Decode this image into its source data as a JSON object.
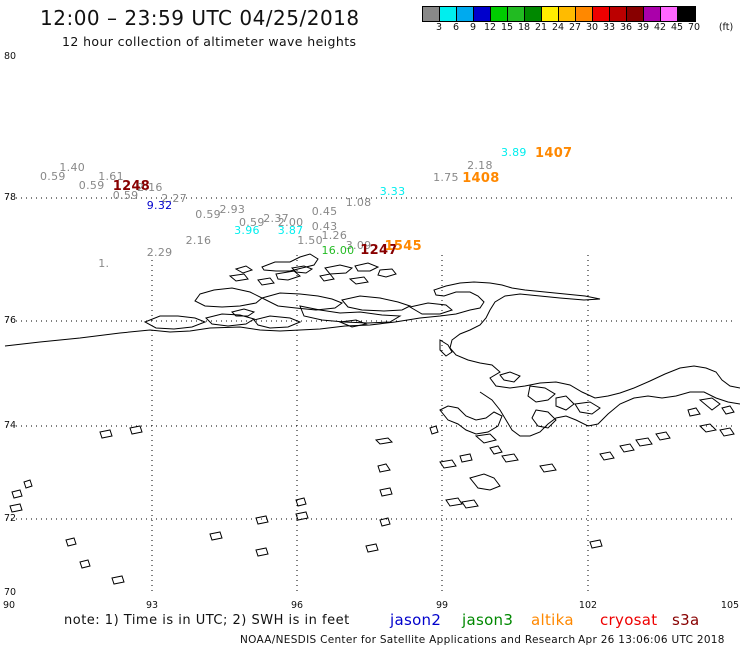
{
  "header": {
    "title": "12:00 – 23:59 UTC 04/25/2018",
    "subtitle": "12 hour collection of altimeter wave heights"
  },
  "legend": {
    "unit": "(ft)",
    "bins": [
      {
        "label": "3",
        "color": "#888888"
      },
      {
        "label": "6",
        "color": "#00eeee"
      },
      {
        "label": "9",
        "color": "#00aaee"
      },
      {
        "label": "12",
        "color": "#0000cc"
      },
      {
        "label": "15",
        "color": "#00cc00"
      },
      {
        "label": "18",
        "color": "#22bb22"
      },
      {
        "label": "21",
        "color": "#008800"
      },
      {
        "label": "24",
        "color": "#ffee00"
      },
      {
        "label": "27",
        "color": "#ffbb00"
      },
      {
        "label": "30",
        "color": "#ff8800"
      },
      {
        "label": "33",
        "color": "#ee0000"
      },
      {
        "label": "36",
        "color": "#bb0000"
      },
      {
        "label": "39",
        "color": "#880000"
      },
      {
        "label": "42",
        "color": "#aa00aa"
      },
      {
        "label": "45",
        "color": "#ff66ff"
      },
      {
        "label": "70",
        "color": "#000000"
      }
    ]
  },
  "axes": {
    "lat_labels": [
      "80",
      "78",
      "76",
      "74",
      "72",
      "70"
    ],
    "lon_labels": [
      "90",
      "93",
      "96",
      "99",
      "102",
      "105"
    ]
  },
  "observations": [
    {
      "text": "1.40",
      "lat": 77.92,
      "lon": 91.1,
      "color": "#888888"
    },
    {
      "text": "0.59",
      "lat": 77.77,
      "lon": 90.7,
      "color": "#888888"
    },
    {
      "text": "1.61",
      "lat": 77.77,
      "lon": 91.9,
      "color": "#888888"
    },
    {
      "text": "0.59",
      "lat": 77.6,
      "lon": 91.5,
      "color": "#888888"
    },
    {
      "text": "1248",
      "lat": 77.6,
      "lon": 92.2,
      "color": "#880000",
      "big": true
    },
    {
      "text": "2.16",
      "lat": 77.56,
      "lon": 92.7,
      "color": "#888888"
    },
    {
      "text": "0.59",
      "lat": 77.4,
      "lon": 92.2,
      "color": "#888888"
    },
    {
      "text": "2.27",
      "lat": 77.36,
      "lon": 93.2,
      "color": "#888888"
    },
    {
      "text": "9.32",
      "lat": 77.22,
      "lon": 92.9,
      "color": "#0000cc"
    },
    {
      "text": "2.93",
      "lat": 77.15,
      "lon": 94.4,
      "color": "#888888"
    },
    {
      "text": "0.59",
      "lat": 77.06,
      "lon": 93.9,
      "color": "#888888"
    },
    {
      "text": "2.37",
      "lat": 76.98,
      "lon": 95.3,
      "color": "#888888"
    },
    {
      "text": "0.59",
      "lat": 76.9,
      "lon": 94.8,
      "color": "#888888"
    },
    {
      "text": "2.00",
      "lat": 76.9,
      "lon": 95.6,
      "color": "#888888"
    },
    {
      "text": "0.43",
      "lat": 76.83,
      "lon": 96.3,
      "color": "#888888"
    },
    {
      "text": "3.96",
      "lat": 76.76,
      "lon": 94.7,
      "color": "#00eeee"
    },
    {
      "text": "3.87",
      "lat": 76.76,
      "lon": 95.6,
      "color": "#00eeee"
    },
    {
      "text": "0.45",
      "lat": 77.1,
      "lon": 96.3,
      "color": "#888888"
    },
    {
      "text": "1.08",
      "lat": 77.28,
      "lon": 97.0,
      "color": "#888888"
    },
    {
      "text": "3.33",
      "lat": 77.48,
      "lon": 97.7,
      "color": "#00eeee"
    },
    {
      "text": "1.75",
      "lat": 77.75,
      "lon": 98.8,
      "color": "#888888"
    },
    {
      "text": "1408",
      "lat": 77.75,
      "lon": 99.4,
      "color": "#ff8800",
      "big": true
    },
    {
      "text": "2.18",
      "lat": 77.96,
      "lon": 99.5,
      "color": "#888888"
    },
    {
      "text": "3.89",
      "lat": 78.2,
      "lon": 100.2,
      "color": "#00eeee"
    },
    {
      "text": "1407",
      "lat": 78.2,
      "lon": 100.9,
      "color": "#ff8800",
      "big": true
    },
    {
      "text": "1.26",
      "lat": 76.66,
      "lon": 96.5,
      "color": "#888888"
    },
    {
      "text": "1.50",
      "lat": 76.56,
      "lon": 96.0,
      "color": "#888888"
    },
    {
      "text": "2.16",
      "lat": 76.56,
      "lon": 93.7,
      "color": "#888888"
    },
    {
      "text": "2.29",
      "lat": 76.35,
      "lon": 92.9,
      "color": "#888888"
    },
    {
      "text": "3.09",
      "lat": 76.48,
      "lon": 97.0,
      "color": "#888888"
    },
    {
      "text": "16.00",
      "lat": 76.38,
      "lon": 96.5,
      "color": "#22bb22"
    },
    {
      "text": "1247",
      "lat": 76.4,
      "lon": 97.3,
      "color": "#880000",
      "big": true
    },
    {
      "text": "1545",
      "lat": 76.48,
      "lon": 97.8,
      "color": "#ff8800",
      "big": true
    },
    {
      "text": "1.",
      "lat": 76.13,
      "lon": 91.9,
      "color": "#888888"
    }
  ],
  "note": "note:  1) Time is in UTC;  2) SWH is in feet",
  "satellites": [
    {
      "name": "jason2",
      "color": "#0000cc"
    },
    {
      "name": "jason3",
      "color": "#008800"
    },
    {
      "name": "altika",
      "color": "#ff8800"
    },
    {
      "name": "cryosat",
      "color": "#ee0000"
    },
    {
      "name": "s3a",
      "color": "#880000"
    }
  ],
  "footer": {
    "credit": "NOAA/NESDIS Center for Satellite Applications and Research",
    "generated": "Apr 26 13:06:06 UTC 2018"
  }
}
